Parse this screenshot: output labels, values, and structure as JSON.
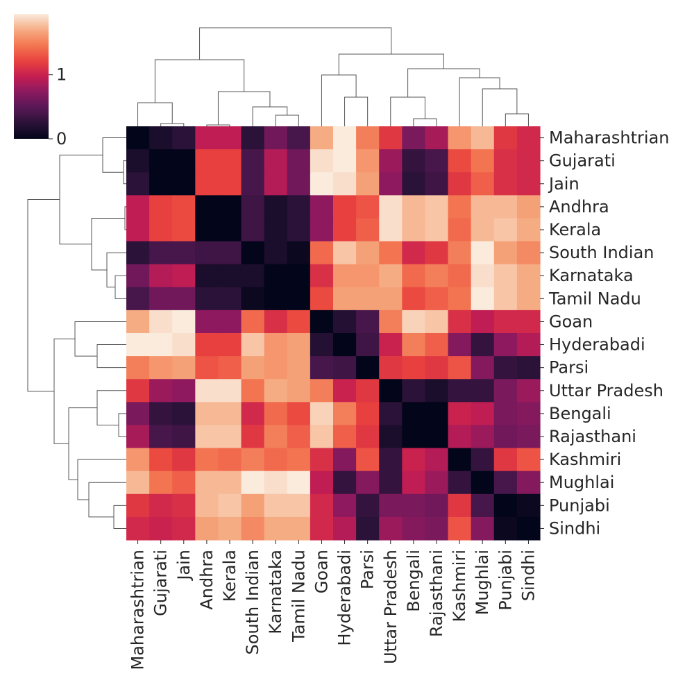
{
  "chart_data": {
    "type": "heatmap",
    "title": "",
    "xlabel": "",
    "ylabel": "",
    "row_labels": [
      "Maharashtrian",
      "Gujarati",
      "Jain",
      "Andhra",
      "Kerala",
      "South Indian",
      "Karnataka",
      "Tamil Nadu",
      "Goan",
      "Hyderabadi",
      "Parsi",
      "Uttar Pradesh",
      "Bengali",
      "Rajasthani",
      "Kashmiri",
      "Mughlai",
      "Punjabi",
      "Sindhi"
    ],
    "col_labels": [
      "Maharashtrian",
      "Gujarati",
      "Jain",
      "Andhra",
      "Kerala",
      "South Indian",
      "Karnataka",
      "Tamil Nadu",
      "Goan",
      "Hyderabadi",
      "Parsi",
      "Uttar Pradesh",
      "Bengali",
      "Rajasthani",
      "Kashmiri",
      "Mughlai",
      "Punjabi",
      "Sindhi"
    ],
    "values": [
      [
        0.0,
        0.15,
        0.25,
        0.95,
        0.95,
        0.25,
        0.6,
        0.4,
        1.7,
        1.95,
        1.5,
        1.15,
        0.65,
        0.85,
        1.6,
        1.75,
        1.15,
        1.05
      ],
      [
        0.15,
        0.0,
        0.0,
        1.2,
        1.2,
        0.4,
        0.9,
        0.6,
        1.9,
        1.95,
        1.6,
        0.8,
        0.3,
        0.4,
        1.25,
        1.45,
        1.1,
        1.05
      ],
      [
        0.25,
        0.0,
        0.0,
        1.2,
        1.2,
        0.4,
        0.9,
        0.6,
        1.95,
        1.9,
        1.65,
        0.75,
        0.25,
        0.35,
        1.15,
        1.35,
        1.1,
        1.05
      ],
      [
        0.95,
        1.2,
        1.25,
        0.0,
        0.0,
        0.35,
        0.15,
        0.25,
        0.75,
        1.2,
        1.3,
        1.9,
        1.75,
        1.8,
        1.45,
        1.75,
        1.75,
        1.65
      ],
      [
        0.95,
        1.2,
        1.25,
        0.0,
        0.0,
        0.35,
        0.15,
        0.25,
        0.75,
        1.2,
        1.35,
        1.9,
        1.75,
        1.8,
        1.4,
        1.75,
        1.8,
        1.7
      ],
      [
        0.25,
        0.4,
        0.4,
        0.35,
        0.35,
        0.0,
        0.15,
        0.05,
        1.4,
        1.8,
        1.65,
        1.45,
        1.05,
        1.15,
        1.5,
        1.95,
        1.65,
        1.55
      ],
      [
        0.6,
        0.9,
        0.95,
        0.15,
        0.15,
        0.15,
        0.0,
        0.0,
        1.1,
        1.6,
        1.6,
        1.7,
        1.4,
        1.5,
        1.4,
        1.9,
        1.8,
        1.7
      ],
      [
        0.4,
        0.6,
        0.6,
        0.25,
        0.25,
        0.05,
        0.0,
        0.0,
        1.25,
        1.65,
        1.65,
        1.65,
        1.25,
        1.35,
        1.45,
        1.95,
        1.8,
        1.7
      ],
      [
        1.7,
        1.9,
        1.95,
        0.75,
        0.75,
        1.4,
        1.1,
        1.25,
        0.0,
        0.2,
        0.4,
        1.5,
        1.85,
        1.8,
        1.1,
        0.95,
        1.05,
        1.05
      ],
      [
        1.95,
        1.95,
        1.9,
        1.2,
        1.2,
        1.8,
        1.6,
        1.65,
        0.2,
        0.0,
        0.35,
        1.0,
        1.5,
        1.35,
        0.7,
        0.3,
        0.75,
        0.9
      ],
      [
        1.5,
        1.6,
        1.65,
        1.3,
        1.35,
        1.65,
        1.6,
        1.65,
        0.4,
        0.35,
        0.0,
        1.15,
        1.2,
        1.15,
        1.3,
        0.7,
        0.3,
        0.25
      ],
      [
        1.15,
        0.8,
        0.75,
        1.9,
        1.9,
        1.45,
        1.7,
        1.65,
        1.5,
        1.0,
        1.15,
        0.0,
        0.25,
        0.15,
        0.3,
        0.3,
        0.65,
        0.8
      ],
      [
        0.65,
        0.3,
        0.25,
        1.75,
        1.75,
        1.05,
        1.4,
        1.25,
        1.85,
        1.5,
        1.2,
        0.25,
        0.0,
        0.0,
        1.0,
        0.95,
        0.65,
        0.7
      ],
      [
        0.85,
        0.4,
        0.35,
        1.8,
        1.8,
        1.15,
        1.5,
        1.35,
        1.8,
        1.35,
        1.15,
        0.15,
        0.0,
        0.0,
        0.9,
        0.8,
        0.6,
        0.65
      ],
      [
        1.6,
        1.25,
        1.15,
        1.45,
        1.4,
        1.5,
        1.4,
        1.45,
        1.1,
        0.7,
        1.3,
        0.3,
        1.0,
        0.9,
        0.0,
        0.3,
        1.15,
        1.3
      ],
      [
        1.75,
        1.45,
        1.35,
        1.75,
        1.75,
        1.95,
        1.9,
        1.95,
        0.95,
        0.3,
        0.7,
        0.3,
        0.95,
        0.8,
        0.3,
        0.0,
        0.4,
        0.7
      ],
      [
        1.15,
        1.05,
        1.1,
        1.75,
        1.8,
        1.65,
        1.8,
        1.8,
        1.05,
        0.75,
        0.3,
        0.65,
        0.65,
        0.6,
        1.15,
        0.4,
        0.0,
        0.05
      ],
      [
        1.05,
        1.0,
        1.05,
        1.65,
        1.7,
        1.55,
        1.7,
        1.7,
        1.05,
        0.9,
        0.25,
        0.8,
        0.7,
        0.65,
        1.3,
        0.7,
        0.05,
        0.0
      ]
    ],
    "colorbar": {
      "colormap": "rocket",
      "vmin": 0,
      "vmax": 1.95,
      "tick_values": [
        0,
        1
      ],
      "tick_labels": [
        "0",
        "1"
      ]
    },
    "row_dendrogram": true,
    "col_dendrogram": true,
    "grid": false
  }
}
